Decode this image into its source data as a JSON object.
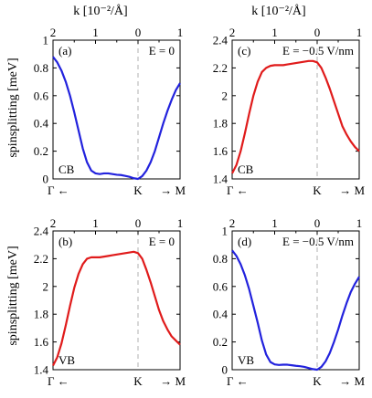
{
  "figure": {
    "top_axis_label_left": "k [10⁻²/Å]",
    "top_axis_label_right": "k [10⁻²/Å]",
    "left_ylabel_top": "spinsplitting [meV]",
    "left_ylabel_bottom": "spinsplitting [meV]"
  },
  "colors": {
    "blue": "#2222dd",
    "red": "#e01b1b",
    "dashed": "#b0b0b0"
  },
  "chart_data": [
    {
      "id": "a",
      "type": "line",
      "panel_label": "(a)",
      "field_label": "E = 0",
      "band_label": "CB",
      "ylabel": "spinsplitting [meV]",
      "ylim": [
        0,
        1
      ],
      "yticks": [
        "0",
        "0.2",
        "0.4",
        "0.6",
        "0.8",
        "1"
      ],
      "top_ticks": [
        "2",
        "1",
        "0",
        "1"
      ],
      "bottom_labels": {
        "left": "Γ ←",
        "center": "K",
        "right": "→ M"
      },
      "xlim": [
        -2,
        1
      ],
      "color": "blue",
      "series": [
        {
          "x": [
            -2,
            -1.9,
            -1.8,
            -1.7,
            -1.6,
            -1.5,
            -1.4,
            -1.3,
            -1.2,
            -1.1,
            -1.0,
            -0.9,
            -0.8,
            -0.7,
            -0.6,
            -0.5,
            -0.4,
            -0.3,
            -0.2,
            -0.1,
            0,
            0.1,
            0.2,
            0.3,
            0.4,
            0.5,
            0.6,
            0.7,
            0.8,
            0.9,
            1.0
          ],
          "y": [
            0.88,
            0.84,
            0.78,
            0.7,
            0.6,
            0.48,
            0.35,
            0.22,
            0.12,
            0.06,
            0.04,
            0.035,
            0.04,
            0.04,
            0.035,
            0.03,
            0.028,
            0.022,
            0.015,
            0.005,
            0.0,
            0.02,
            0.06,
            0.12,
            0.2,
            0.3,
            0.4,
            0.49,
            0.57,
            0.64,
            0.69
          ]
        }
      ]
    },
    {
      "id": "c",
      "type": "line",
      "panel_label": "(c)",
      "field_label": "E = −0.5 V/nm",
      "band_label": "CB",
      "ylim": [
        1.4,
        2.4
      ],
      "yticks": [
        "1.4",
        "1.6",
        "1.8",
        "2",
        "2.2",
        "2.4"
      ],
      "top_ticks": [
        "2",
        "1",
        "0",
        "1"
      ],
      "bottom_labels": {
        "left": "Γ ←",
        "center": "K",
        "right": "→ M"
      },
      "xlim": [
        -2,
        1
      ],
      "color": "red",
      "series": [
        {
          "x": [
            -2,
            -1.9,
            -1.8,
            -1.7,
            -1.6,
            -1.5,
            -1.4,
            -1.3,
            -1.2,
            -1.1,
            -1.0,
            -0.9,
            -0.8,
            -0.7,
            -0.6,
            -0.5,
            -0.4,
            -0.3,
            -0.2,
            -0.1,
            0,
            0.1,
            0.2,
            0.3,
            0.4,
            0.5,
            0.6,
            0.7,
            0.8,
            0.9,
            1.0
          ],
          "y": [
            1.44,
            1.5,
            1.6,
            1.73,
            1.87,
            2.0,
            2.1,
            2.17,
            2.2,
            2.215,
            2.22,
            2.22,
            2.22,
            2.225,
            2.23,
            2.235,
            2.24,
            2.245,
            2.25,
            2.25,
            2.24,
            2.2,
            2.13,
            2.05,
            1.96,
            1.87,
            1.78,
            1.72,
            1.67,
            1.63,
            1.6
          ]
        }
      ]
    },
    {
      "id": "b",
      "type": "line",
      "panel_label": "(b)",
      "field_label": "E = 0",
      "band_label": "VB",
      "ylabel": "spinsplitting [meV]",
      "ylim": [
        1.4,
        2.4
      ],
      "yticks": [
        "1.4",
        "1.6",
        "1.8",
        "2",
        "2.2",
        "2.4"
      ],
      "top_ticks": [
        "2",
        "1",
        "0",
        "1"
      ],
      "bottom_labels": {
        "left": "Γ ←",
        "center": "K",
        "right": "→ M"
      },
      "xlim": [
        -2,
        1
      ],
      "color": "red",
      "series": [
        {
          "x": [
            -2,
            -1.9,
            -1.8,
            -1.7,
            -1.6,
            -1.5,
            -1.4,
            -1.3,
            -1.2,
            -1.1,
            -1.0,
            -0.9,
            -0.8,
            -0.7,
            -0.6,
            -0.5,
            -0.4,
            -0.3,
            -0.2,
            -0.1,
            0,
            0.1,
            0.2,
            0.3,
            0.4,
            0.5,
            0.6,
            0.7,
            0.8,
            0.9,
            1.0
          ],
          "y": [
            1.43,
            1.49,
            1.59,
            1.72,
            1.86,
            1.99,
            2.09,
            2.16,
            2.2,
            2.21,
            2.21,
            2.21,
            2.215,
            2.22,
            2.225,
            2.23,
            2.235,
            2.24,
            2.245,
            2.25,
            2.24,
            2.2,
            2.12,
            2.03,
            1.93,
            1.83,
            1.75,
            1.69,
            1.64,
            1.61,
            1.58
          ]
        }
      ]
    },
    {
      "id": "d",
      "type": "line",
      "panel_label": "(d)",
      "field_label": "E = −0.5 V/nm",
      "band_label": "VB",
      "ylim": [
        0,
        1
      ],
      "yticks": [
        "0",
        "0.2",
        "0.4",
        "0.6",
        "0.8",
        "1"
      ],
      "top_ticks": [
        "2",
        "1",
        "0",
        "1"
      ],
      "bottom_labels": {
        "left": "Γ ←",
        "center": "K",
        "right": "→ M"
      },
      "xlim": [
        -2,
        1
      ],
      "color": "blue",
      "series": [
        {
          "x": [
            -2,
            -1.9,
            -1.8,
            -1.7,
            -1.6,
            -1.5,
            -1.4,
            -1.3,
            -1.2,
            -1.1,
            -1.0,
            -0.9,
            -0.8,
            -0.7,
            -0.6,
            -0.5,
            -0.4,
            -0.3,
            -0.2,
            -0.1,
            0,
            0.1,
            0.2,
            0.3,
            0.4,
            0.5,
            0.6,
            0.7,
            0.8,
            0.9,
            1.0
          ],
          "y": [
            0.86,
            0.82,
            0.76,
            0.68,
            0.58,
            0.46,
            0.34,
            0.21,
            0.11,
            0.055,
            0.038,
            0.034,
            0.036,
            0.036,
            0.032,
            0.028,
            0.025,
            0.02,
            0.012,
            0.004,
            0.0,
            0.02,
            0.06,
            0.12,
            0.2,
            0.29,
            0.39,
            0.48,
            0.56,
            0.62,
            0.67
          ]
        }
      ]
    }
  ]
}
